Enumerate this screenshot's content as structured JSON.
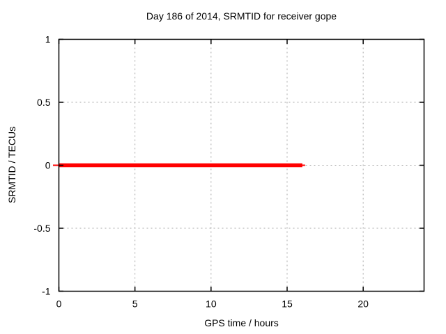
{
  "chart_data": {
    "type": "line",
    "title": "Day 186 of 2014, SRMTID for receiver gope",
    "xlabel": "GPS time / hours",
    "ylabel": "SRMTID / TECUs",
    "xlim": [
      0,
      24
    ],
    "ylim": [
      -1,
      1
    ],
    "x_ticks": [
      {
        "value": 0,
        "label": "0"
      },
      {
        "value": 5,
        "label": "5"
      },
      {
        "value": 10,
        "label": "10"
      },
      {
        "value": 15,
        "label": "15"
      },
      {
        "value": 20,
        "label": "20"
      }
    ],
    "y_ticks": [
      {
        "value": 1,
        "label": "1"
      },
      {
        "value": 0.5,
        "label": "0.5"
      },
      {
        "value": 0,
        "label": "0"
      },
      {
        "value": -0.5,
        "label": "-0.5"
      },
      {
        "value": -1,
        "label": "-1"
      }
    ],
    "grid": true,
    "legend": "none",
    "series": [
      {
        "name": "SRMTID",
        "color": "#ff0000",
        "x": [
          0,
          16
        ],
        "y": [
          0,
          0
        ]
      }
    ],
    "colors": {
      "background": "#ffffff",
      "border": "#000000",
      "grid": "#a8a8a8",
      "text": "#000000"
    }
  }
}
